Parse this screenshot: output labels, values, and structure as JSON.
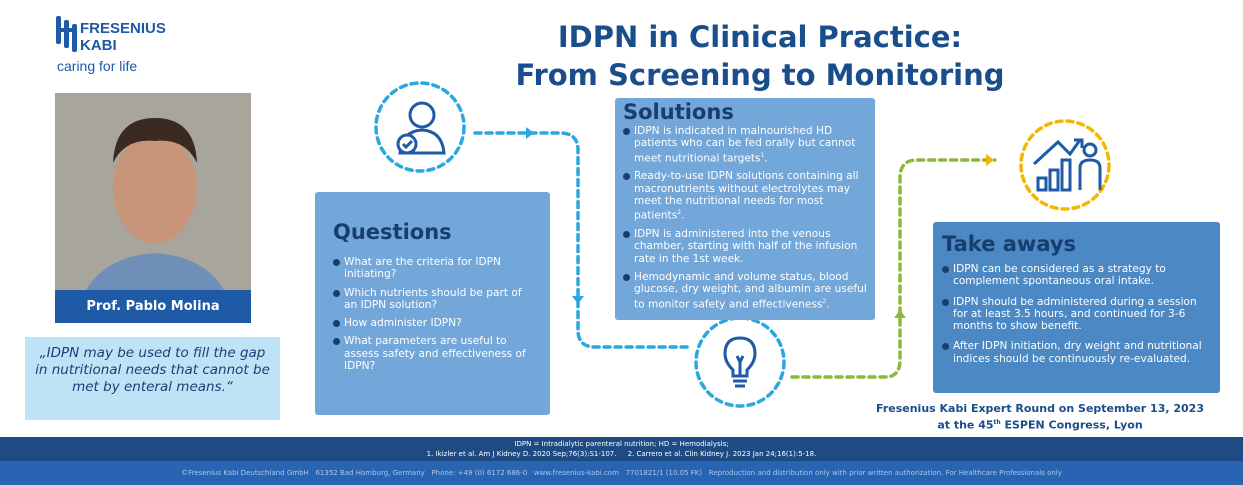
{
  "logo": {
    "name_line1": "FRESENIUS",
    "name_line2": "KABI",
    "tagline": "caring for life"
  },
  "title": {
    "line1": "IDPN in Clinical Practice:",
    "line2": "From Screening to Monitoring"
  },
  "speaker": {
    "name": "Prof. Pablo Molina"
  },
  "quote": "„IDPN may be used to fill the gap in nutritional needs that cannot be met by enteral means.“",
  "questions": {
    "heading": "Questions",
    "items": [
      "What are the criteria for IDPN initiating?",
      "Which nutrients should be part of an IDPN solution?",
      "How administer IDPN?",
      "What parameters are useful to assess safety and effectiveness of IDPN?"
    ]
  },
  "solutions": {
    "heading": "Solutions",
    "items": [
      {
        "text": "IDPN is indicated in malnourished HD patients who can be fed orally but cannot meet nutritional targets",
        "ref": "1"
      },
      {
        "text": "Ready-to-use IDPN solutions containing all macronutrients without electrolytes may meet the nutritional needs for most patients",
        "ref": "2"
      },
      {
        "text": "IDPN is administered into the venous chamber, starting with half of the infusion rate in the 1st week.",
        "ref": ""
      },
      {
        "text": "Hemodynamic and volume status, blood glucose, dry weight, and albumin are useful to monitor safety and effectiveness",
        "ref": "2"
      }
    ]
  },
  "takeaways": {
    "heading": "Take aways",
    "items": [
      "IDPN can be considered as a strategy to complement spontaneous oral intake.",
      "IDPN should be administered during a session for at least 3.5 hours, and continued for 3-6 months to show benefit.",
      "After IDPN initiation, dry weight and nutritional indices should be continuously re-evaluated."
    ]
  },
  "expert_round": {
    "line1": "Fresenius Kabi Expert Round on September 13, 2023",
    "line2_pre": "at the 45",
    "line2_sup": "th",
    "line2_post": " ESPEN Congress, Lyon"
  },
  "footer": {
    "abbrev": "IDPN = Intradialytic parenteral nutrition; HD = Hemodialysis;",
    "refs": "1. Ikizler et al. Am J Kidney D. 2020 Sep;76(3):S1-107.     2. Carrero et al. Clin Kidney J. 2023 Jan 24;16(1):5-18.",
    "legal": "©Fresenius Kabi Deutschland GmbH   61352 Bad Homburg, Germany   Phone: +49 (0) 6172 686-0   www.fresenius-kabi.com   7701821/1 (10.05 FK)   Reproduction and distribution only with prior written authorization. For Healthcare Professionals only"
  },
  "colors": {
    "brand_blue": "#1f5aa6",
    "title_blue": "#1a4d8c",
    "box_blue": "#73a6d9",
    "takeaway_blue": "#4b88c4",
    "quote_bg": "#bfe3f6",
    "path_blue": "#2ba7e0",
    "path_green": "#8cb83c",
    "accent_yellow": "#f2b705"
  },
  "icons": [
    "fresenius-logo",
    "person-check-icon",
    "lightbulb-icon",
    "growth-chart-icon"
  ]
}
